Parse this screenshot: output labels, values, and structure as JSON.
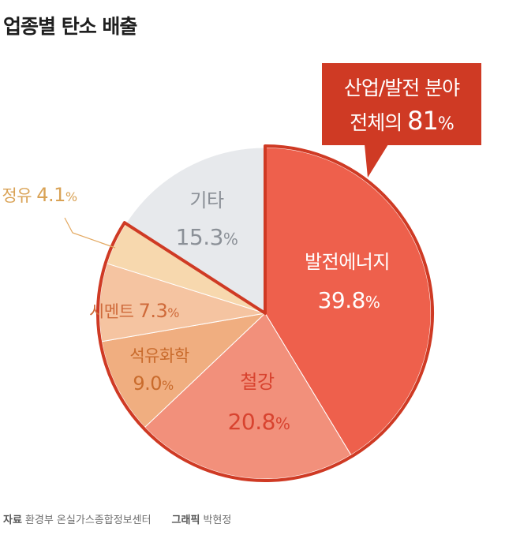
{
  "title": "업종별 탄소 배출",
  "callout": {
    "line1": "산업/발전 분야",
    "line2_prefix": "전체의 ",
    "line2_value": "81",
    "line2_unit": "%"
  },
  "footer": {
    "source_label": "자료",
    "source": "환경부 온실가스종합정보센터",
    "graphic_label": "그래픽",
    "graphic": "박현정"
  },
  "colors": {
    "highlight_border": "#cf3a24",
    "accent": "#cf3a24"
  },
  "chart_data": {
    "type": "pie",
    "unit": "%",
    "slices": [
      {
        "label": "발전에너지",
        "value": 39.8,
        "display": "39.8",
        "color": "#ee604c",
        "text_color": "#ffffff"
      },
      {
        "label": "철강",
        "value": 20.8,
        "display": "20.8",
        "color": "#f2907b",
        "text_color": "#d8432f"
      },
      {
        "label": "석유화학",
        "value": 9.0,
        "display": "9.0",
        "color": "#f0ae80",
        "text_color": "#c96b2c"
      },
      {
        "label": "시멘트",
        "value": 7.3,
        "display": "7.3",
        "color": "#f5c4a1",
        "text_color": "#cf6a3a"
      },
      {
        "label": "정유",
        "value": 4.1,
        "display": "4.1",
        "color": "#f7d8ae",
        "text_color": "#d9a255"
      },
      {
        "label": "기타",
        "value": 15.3,
        "display": "15.3",
        "color": "#e7e9ec",
        "text_color": "#8b9097"
      }
    ],
    "highlighted_group": [
      "발전에너지",
      "철강",
      "석유화학",
      "시멘트",
      "정유"
    ]
  }
}
